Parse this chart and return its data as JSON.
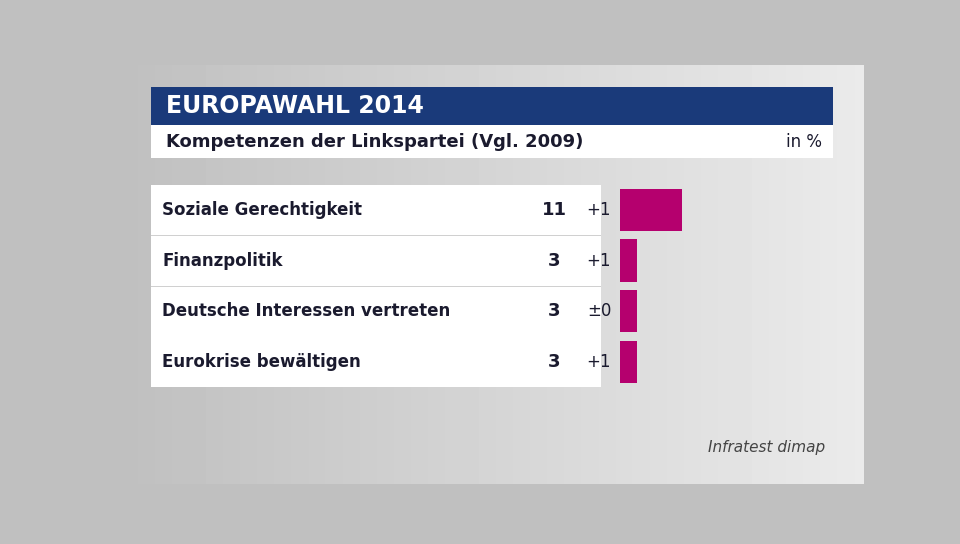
{
  "title_banner": "EUROPAWAHL 2014",
  "subtitle": "Kompetenzen der Linkspartei (Vgl. 2009)",
  "subtitle_right": "in %",
  "source": "Infratest dimap",
  "banner_color": "#1a3a7a",
  "bar_color": "#b5006e",
  "background_color_left": "#c8c8c8",
  "background_color_right": "#e8e8e8",
  "panel_bg": "#f5f5f5",
  "categories": [
    "Soziale Gerechtigkeit",
    "Finanzpolitik",
    "Deutsche Interessen vertreten",
    "Eurokrise bewältigen"
  ],
  "values": [
    11,
    3,
    3,
    3
  ],
  "changes": [
    "+1",
    "+1",
    "±0",
    "+1"
  ],
  "bar_max_val": 11,
  "figwidth": 9.6,
  "figheight": 5.44,
  "dpi": 100
}
